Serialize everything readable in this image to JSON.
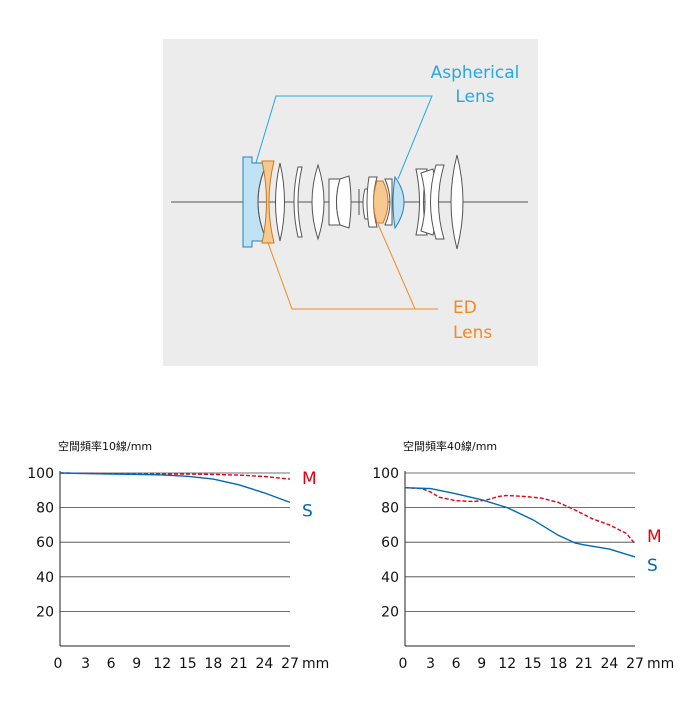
{
  "diagram": {
    "aspherical_label_line1": "Aspherical",
    "aspherical_label_line2": "Lens",
    "ed_label_line1": "ED",
    "ed_label_line2": "Lens",
    "colors": {
      "background": "#ececec",
      "aspherical": "#26a8e0",
      "aspherical_fill": "#bfe3f5",
      "ed": "#f08a24",
      "ed_fill": "#f7c990",
      "lens_outline": "#555555"
    }
  },
  "chart_data": [
    {
      "type": "line",
      "title": "空間頻率10線/mm",
      "x_unit": "mm",
      "x_ticks": [
        0,
        3,
        6,
        9,
        12,
        15,
        18,
        21,
        24,
        27
      ],
      "y_ticks": [
        20,
        40,
        60,
        80,
        100
      ],
      "xlim": [
        0,
        27
      ],
      "ylim": [
        0,
        100
      ],
      "grid": true,
      "series": [
        {
          "name": "M",
          "color": "#e60012",
          "style": "dashed",
          "x": [
            0,
            3,
            6,
            9,
            12,
            15,
            18,
            21,
            24,
            27
          ],
          "y": [
            100,
            99.8,
            99.6,
            99.5,
            99.4,
            99.4,
            99.2,
            98.8,
            98,
            96.5
          ]
        },
        {
          "name": "S",
          "color": "#0068b7",
          "style": "solid",
          "x": [
            0,
            3,
            6,
            9,
            12,
            15,
            18,
            21,
            24,
            27
          ],
          "y": [
            100,
            99.7,
            99.4,
            99.2,
            98.9,
            98.1,
            96.5,
            93.2,
            88.5,
            83
          ]
        }
      ]
    },
    {
      "type": "line",
      "title": "空間頻率40線/mm",
      "x_unit": "mm",
      "x_ticks": [
        0,
        3,
        6,
        9,
        12,
        15,
        18,
        21,
        24,
        27
      ],
      "y_ticks": [
        20,
        40,
        60,
        80,
        100
      ],
      "xlim": [
        0,
        27
      ],
      "ylim": [
        0,
        100
      ],
      "grid": true,
      "series": [
        {
          "name": "M",
          "color": "#e60012",
          "style": "dashed",
          "x": [
            0,
            2,
            3,
            4,
            6,
            8,
            9,
            10,
            11,
            12,
            14,
            16,
            18,
            20,
            22,
            24,
            26,
            27
          ],
          "y": [
            91.5,
            91,
            89,
            86,
            84,
            83.5,
            84,
            85,
            86.5,
            87,
            86.5,
            85.5,
            83,
            78.5,
            73.5,
            70,
            65,
            59
          ]
        },
        {
          "name": "S",
          "color": "#0068b7",
          "style": "solid",
          "x": [
            0,
            3,
            6,
            9,
            12,
            15,
            18,
            20,
            21,
            24,
            27
          ],
          "y": [
            91.5,
            91,
            88,
            84.5,
            80,
            73,
            64,
            59.5,
            58.5,
            56,
            51.5
          ]
        }
      ]
    }
  ]
}
